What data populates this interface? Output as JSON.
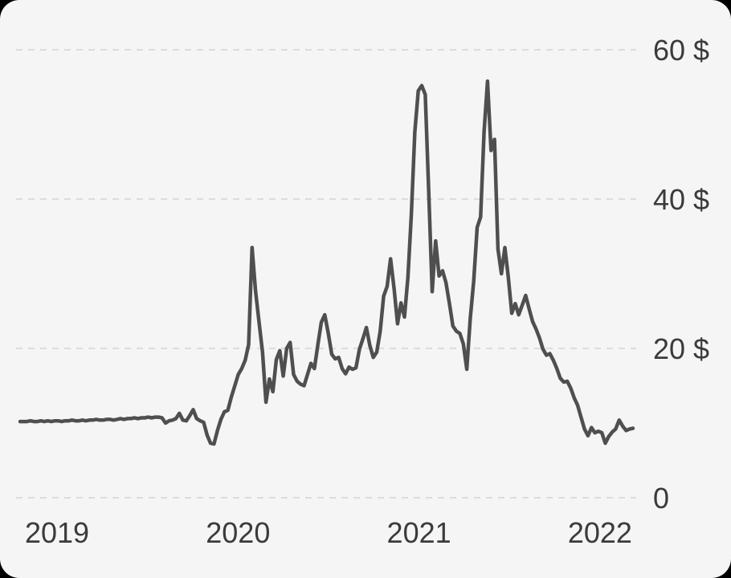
{
  "window": {
    "surround_color": "#000000",
    "card_background": "#f5f5f5"
  },
  "chart_data": {
    "type": "line",
    "title": "",
    "unit": "$",
    "legend": "none",
    "grid": "horizontal-dashed",
    "x_ticks": [
      "2019",
      "2020",
      "2021",
      "2022"
    ],
    "y_ticks": [
      {
        "value": 0,
        "label": "0"
      },
      {
        "value": 20,
        "label": "20 $"
      },
      {
        "value": 40,
        "label": "40 $"
      },
      {
        "value": 60,
        "label": "60 $"
      }
    ],
    "ylim": [
      0,
      64
    ],
    "xlim_decimal_year": [
      2018.94,
      2022.26
    ],
    "sampling": "weekly",
    "colors": {
      "line": "#4f4f4f",
      "grid": "#dcdcdc",
      "text": "#3b3b3b",
      "background": "#f5f5f5"
    },
    "series": [
      {
        "name": "price",
        "color": "#4f4f4f",
        "t_start": 2018.94,
        "t_end": 2022.26,
        "values": [
          10.2,
          10.2,
          10.2,
          10.3,
          10.2,
          10.2,
          10.3,
          10.2,
          10.3,
          10.2,
          10.3,
          10.3,
          10.2,
          10.3,
          10.3,
          10.4,
          10.3,
          10.3,
          10.4,
          10.3,
          10.4,
          10.4,
          10.5,
          10.4,
          10.4,
          10.5,
          10.5,
          10.4,
          10.5,
          10.6,
          10.5,
          10.6,
          10.6,
          10.7,
          10.6,
          10.7,
          10.7,
          10.8,
          10.7,
          10.8,
          10.8,
          10.7,
          10.0,
          10.3,
          10.4,
          10.6,
          11.3,
          10.4,
          10.3,
          11.0,
          11.8,
          10.6,
          10.3,
          10.1,
          8.4,
          7.3,
          7.2,
          9.0,
          10.5,
          11.5,
          11.7,
          13.5,
          15.0,
          16.5,
          17.3,
          18.4,
          20.5,
          33.5,
          27.7,
          23.6,
          19.5,
          12.8,
          15.9,
          14.2,
          18.5,
          19.7,
          16.3,
          20.0,
          20.8,
          16.5,
          15.6,
          15.2,
          15.0,
          16.5,
          18.0,
          17.3,
          20.5,
          23.5,
          24.5,
          22.0,
          19.2,
          18.6,
          18.8,
          17.3,
          16.6,
          17.5,
          17.2,
          17.4,
          19.9,
          21.3,
          22.8,
          20.4,
          18.8,
          19.5,
          22.3,
          27.0,
          28.3,
          32.0,
          28.0,
          23.3,
          26.1,
          24.2,
          29.5,
          38.0,
          49.0,
          54.5,
          55.2,
          54.0,
          41.0,
          27.6,
          34.4,
          29.7,
          30.4,
          28.8,
          26.0,
          23.0,
          22.3,
          22.0,
          20.6,
          17.2,
          24.0,
          29.0,
          36.2,
          37.6,
          49.0,
          55.8,
          46.5,
          48.0,
          33.3,
          30.0,
          33.5,
          29.5,
          24.7,
          26.0,
          24.5,
          25.8,
          27.1,
          25.3,
          23.6,
          22.6,
          21.4,
          19.9,
          19.1,
          19.3,
          18.4,
          17.3,
          16.0,
          15.5,
          15.6,
          14.7,
          13.4,
          12.4,
          10.8,
          9.2,
          8.3,
          9.4,
          8.7,
          8.9,
          8.7,
          7.3,
          8.2,
          8.8,
          9.2,
          10.4,
          9.6,
          9.0,
          9.2,
          9.3
        ]
      }
    ]
  }
}
